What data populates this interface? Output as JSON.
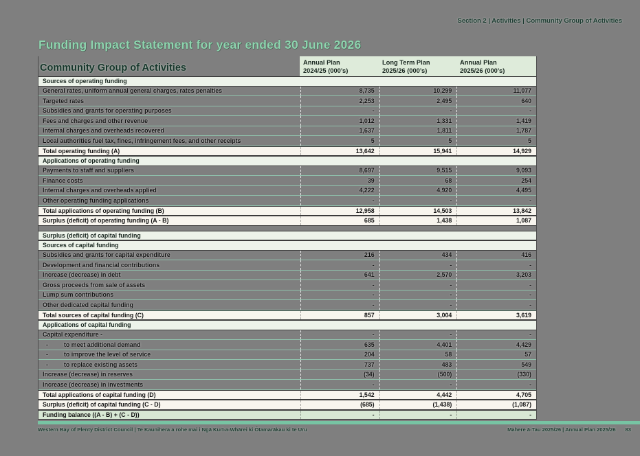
{
  "breadcrumb": {
    "items": [
      "Section 2",
      "Activities",
      "Community Group of Activities"
    ],
    "separator": " | "
  },
  "page_title": "Funding Impact Statement for year ended 30 June 2026",
  "table": {
    "title": "Community Group of Activities",
    "indent_bullet": "-",
    "columns": [
      {
        "line1": "Annual Plan",
        "line2": "2024/25 (000’s)"
      },
      {
        "line1": "Long Term Plan",
        "line2": "2025/26 (000’s)"
      },
      {
        "line1": "Annual Plan",
        "line2": "2025/26 (000’s)"
      }
    ],
    "rows": [
      {
        "type": "section",
        "label": "Sources of operating funding"
      },
      {
        "type": "data",
        "label": "General rates, uniform annual general charges, rates penalties",
        "values": [
          "8,735",
          "10,299",
          "11,077"
        ]
      },
      {
        "type": "data",
        "label": "Targeted rates",
        "values": [
          "2,253",
          "2,495",
          "640"
        ]
      },
      {
        "type": "data",
        "label": "Subsidies and grants for operating purposes",
        "values": [
          "-",
          "-",
          "-"
        ]
      },
      {
        "type": "data",
        "label": "Fees and charges and other revenue",
        "values": [
          "1,012",
          "1,331",
          "1,419"
        ]
      },
      {
        "type": "data",
        "label": "Internal charges and overheads recovered",
        "values": [
          "1,637",
          "1,811",
          "1,787"
        ]
      },
      {
        "type": "data",
        "label": "Local authorities fuel tax, fines, infringement fees, and other receipts",
        "values": [
          "5",
          "5",
          "5"
        ]
      },
      {
        "type": "total",
        "label": "Total operating funding (A)",
        "values": [
          "13,642",
          "15,941",
          "14,929"
        ]
      },
      {
        "type": "section",
        "label": "Applications of operating funding"
      },
      {
        "type": "data",
        "label": "Payments to staff and suppliers",
        "values": [
          "8,697",
          "9,515",
          "9,093"
        ]
      },
      {
        "type": "data",
        "label": "Finance costs",
        "values": [
          "39",
          "68",
          "254"
        ]
      },
      {
        "type": "data",
        "label": "Internal charges and overheads applied",
        "values": [
          "4,222",
          "4,920",
          "4,495"
        ]
      },
      {
        "type": "data",
        "label": "Other operating funding applications",
        "values": [
          "-",
          "-",
          "-"
        ]
      },
      {
        "type": "total",
        "label": "Total applications of operating funding (B)",
        "values": [
          "12,958",
          "14,503",
          "13,842"
        ]
      },
      {
        "type": "total",
        "label": "Surplus (deficit) of operating funding (A - B)",
        "values": [
          "685",
          "1,438",
          "1,087"
        ]
      },
      {
        "type": "gap"
      },
      {
        "type": "section",
        "label": "Surplus (deficit) of capital funding"
      },
      {
        "type": "section",
        "label": "Sources of capital funding"
      },
      {
        "type": "data",
        "label": "Subsidies and grants for capital expenditure",
        "values": [
          "216",
          "434",
          "416"
        ]
      },
      {
        "type": "data",
        "label": "Development and financial contributions",
        "values": [
          "-",
          "-",
          "-"
        ]
      },
      {
        "type": "data",
        "label": "Increase (decrease) in debt",
        "values": [
          "641",
          "2,570",
          "3,203"
        ]
      },
      {
        "type": "data",
        "label": "Gross proceeds from sale of assets",
        "values": [
          "-",
          "-",
          "-"
        ]
      },
      {
        "type": "data",
        "label": "Lump sum contributions",
        "values": [
          "-",
          "-",
          "-"
        ]
      },
      {
        "type": "data",
        "label": "Other dedicated capital funding",
        "values": [
          "-",
          "-",
          "-"
        ]
      },
      {
        "type": "total",
        "label": "Total sources of capital funding (C)",
        "values": [
          "857",
          "3,004",
          "3,619"
        ]
      },
      {
        "type": "section",
        "label": "Applications of capital funding"
      },
      {
        "type": "data",
        "label": "Capital expenditure -",
        "values": [
          "-",
          "-",
          "-"
        ]
      },
      {
        "type": "data",
        "indent": true,
        "label": "to meet additional demand",
        "values": [
          "635",
          "4,401",
          "4,429"
        ]
      },
      {
        "type": "data",
        "indent": true,
        "label": "to improve the level of service",
        "values": [
          "204",
          "58",
          "57"
        ]
      },
      {
        "type": "data",
        "indent": true,
        "label": "to replace existing assets",
        "values": [
          "737",
          "483",
          "549"
        ]
      },
      {
        "type": "data",
        "label": "Increase (decrease) in reserves",
        "values": [
          "(34)",
          "(500)",
          "(330)"
        ]
      },
      {
        "type": "data",
        "label": "Increase (decrease) in investments",
        "values": [
          "-",
          "-",
          "-"
        ]
      },
      {
        "type": "total",
        "label": "Total applications of capital funding (D)",
        "values": [
          "1,542",
          "4,442",
          "4,705"
        ]
      },
      {
        "type": "total",
        "label": "Surplus (deficit) of capital funding (C - D)",
        "values": [
          "(685)",
          "(1,438)",
          "(1,087)"
        ]
      },
      {
        "type": "balance",
        "label": "Funding balance ((A - B) + (C - D))",
        "values": [
          "-",
          "-",
          "-"
        ]
      }
    ]
  },
  "footer": {
    "left": "Western Bay of Plenty District Council | Te Kaunihera a rohe mai i Ngā Kurī-a-Whārei ki Ōtamarākau ki te Uru",
    "right": "Mahere ā-Tau 2025/26 | Annual Plan 2025/26",
    "page_number": "83"
  },
  "colors": {
    "page_background": "#7f7f7f",
    "title_green": "#8fd4af",
    "dark_green_text": "#17352a",
    "header_band": "#deebda",
    "section_row": "#edf3ea",
    "total_row": "#f8f5ee",
    "balance_row": "#d8e8d4",
    "row_line_mint": "#8fc2ac",
    "accent_bar": "#77c4a3"
  }
}
